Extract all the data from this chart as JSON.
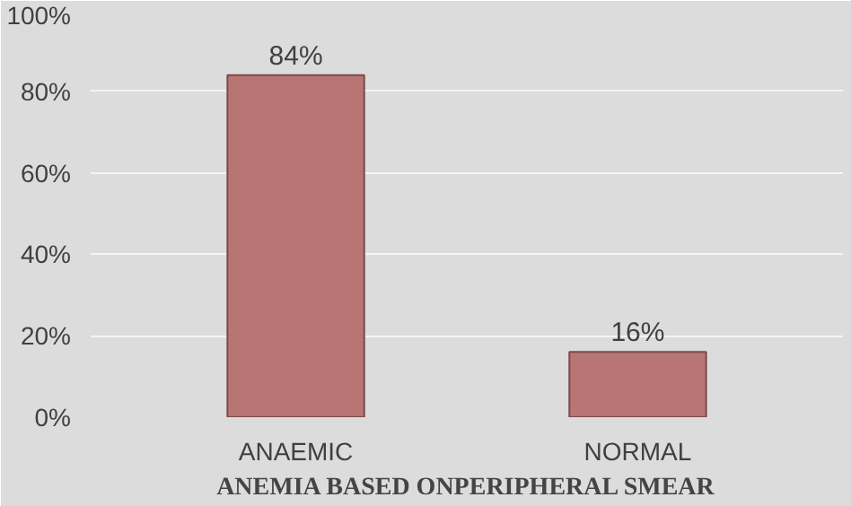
{
  "chart_data": {
    "type": "bar",
    "xlabel": "ANEMIA BASED ONPERIPHERAL SMEAR",
    "categories": [
      "ANAEMIC",
      "NORMAL"
    ],
    "values": [
      84,
      16
    ],
    "color": "#b97474",
    "ylim": [
      0,
      100
    ],
    "yticks": [
      {
        "value": 0,
        "label": "0%"
      },
      {
        "value": 20,
        "label": "20%"
      },
      {
        "value": 40,
        "label": "40%"
      },
      {
        "value": 60,
        "label": "60%"
      },
      {
        "value": 80,
        "label": "80%"
      },
      {
        "value": 100,
        "label": "100%"
      }
    ],
    "value_labels": [
      "84%",
      "16%"
    ],
    "grid": "y"
  }
}
